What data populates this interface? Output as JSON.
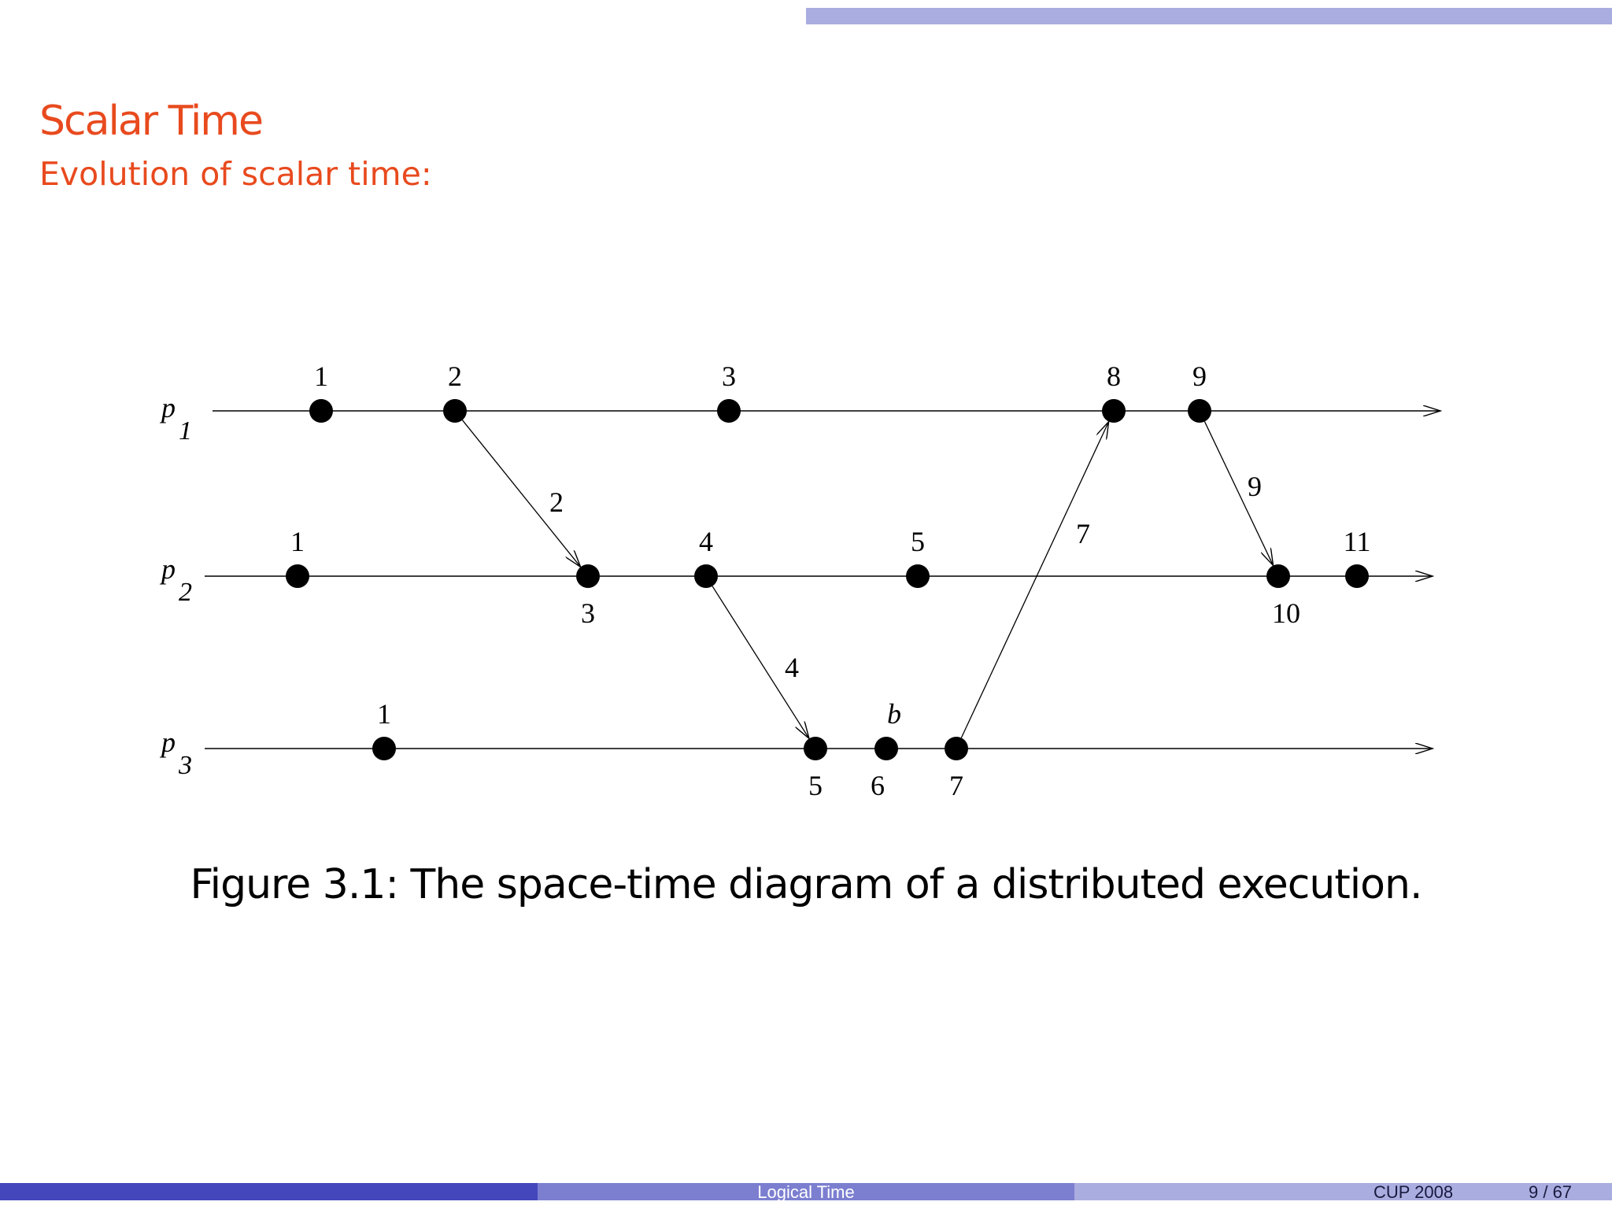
{
  "slide": {
    "title": "Scalar Time",
    "subtitle": "Evolution of scalar time:",
    "caption": "Figure 3.1: The space-time diagram of a distributed execution."
  },
  "footer": {
    "center": "Logical Time",
    "venue": "CUP 2008",
    "page": "9 / 67"
  },
  "diagram": {
    "processes": [
      {
        "id": "p1",
        "label": "p",
        "subscript": "1"
      },
      {
        "id": "p2",
        "label": "p",
        "subscript": "2"
      },
      {
        "id": "p3",
        "label": "p",
        "subscript": "3"
      }
    ],
    "events": [
      {
        "id": "p1-e1",
        "process": "p1",
        "clock": "1",
        "label_pos": "above"
      },
      {
        "id": "p1-e2",
        "process": "p1",
        "clock": "2",
        "label_pos": "above"
      },
      {
        "id": "p1-e3",
        "process": "p1",
        "clock": "3",
        "label_pos": "above"
      },
      {
        "id": "p1-e8",
        "process": "p1",
        "clock": "8",
        "label_pos": "above"
      },
      {
        "id": "p1-e9",
        "process": "p1",
        "clock": "9",
        "label_pos": "above"
      },
      {
        "id": "p2-e1",
        "process": "p2",
        "clock": "1",
        "label_pos": "above"
      },
      {
        "id": "p2-e3",
        "process": "p2",
        "clock": "3",
        "label_pos": "below"
      },
      {
        "id": "p2-e4",
        "process": "p2",
        "clock": "4",
        "label_pos": "above"
      },
      {
        "id": "p2-e5",
        "process": "p2",
        "clock": "5",
        "label_pos": "above"
      },
      {
        "id": "p2-e10",
        "process": "p2",
        "clock": "10",
        "label_pos": "below"
      },
      {
        "id": "p2-e11",
        "process": "p2",
        "clock": "11",
        "label_pos": "above"
      },
      {
        "id": "p3-e1",
        "process": "p3",
        "clock": "1",
        "label_pos": "above"
      },
      {
        "id": "p3-e5",
        "process": "p3",
        "clock": "5",
        "label_pos": "below"
      },
      {
        "id": "p3-e6",
        "process": "p3",
        "clock": "6",
        "label_pos": "below",
        "tag": "b"
      },
      {
        "id": "p3-e7",
        "process": "p3",
        "clock": "7",
        "label_pos": "below"
      }
    ],
    "messages": [
      {
        "from": "p1-e2",
        "to": "p2-e3",
        "timestamp": "2"
      },
      {
        "from": "p2-e4",
        "to": "p3-e5",
        "timestamp": "4"
      },
      {
        "from": "p3-e7",
        "to": "p1-e8",
        "timestamp": "7"
      },
      {
        "from": "p1-e9",
        "to": "p2-e10",
        "timestamp": "9"
      }
    ]
  }
}
